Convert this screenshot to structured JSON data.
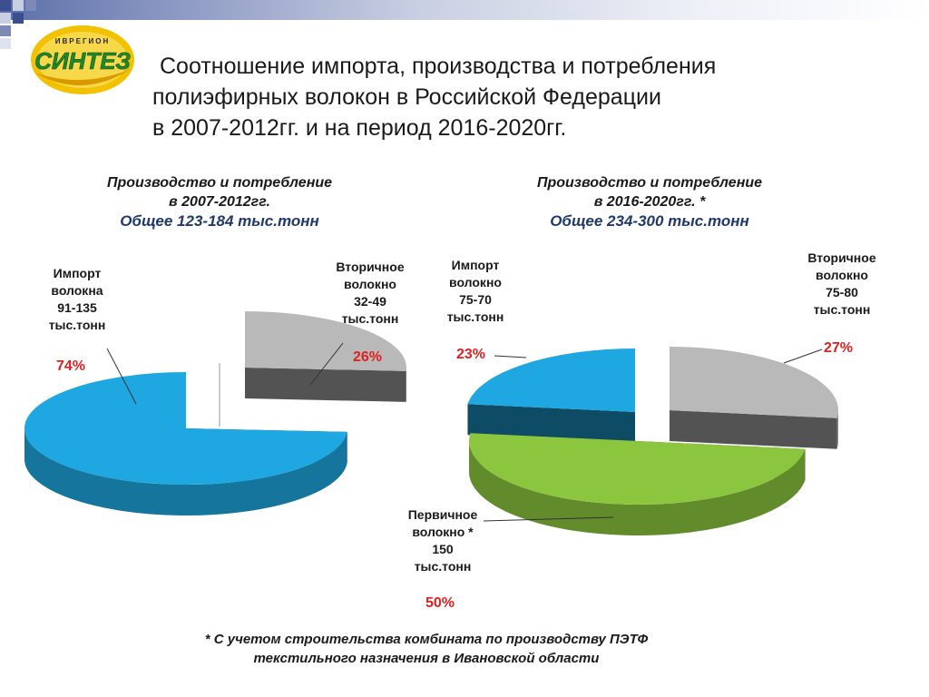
{
  "logo": {
    "top_text": "ИВРЕГИОН",
    "brand": "СИНТЕЗ"
  },
  "title": {
    "line1": "Соотношение импорта, производства и потребления",
    "line2": "полиэфирных волокон в Российской Федерации",
    "line3": "в 2007-2012гг. и на период 2016-2020гг."
  },
  "colors": {
    "import": "#1ea7e0",
    "secondary": "#b9b9b9",
    "primary": "#8cc63f",
    "percent": "#e02020",
    "band": "#5b6fa8"
  },
  "chart_data": [
    {
      "type": "pie",
      "title": "Производство и потребление в 2007-2012гг.",
      "heading_line1": "Производство и потребление",
      "heading_line2": "в 2007-2012гг.",
      "total": "Общее 123-184 тыс.тонн",
      "slices": [
        {
          "key": "import",
          "label": [
            "Импорт",
            "волокна",
            "91-135",
            "тыс.тонн"
          ],
          "percent": 74,
          "percent_text": "74%"
        },
        {
          "key": "secondary",
          "label": [
            "Вторичное",
            "волокно",
            "32-49",
            "тыс.тонн"
          ],
          "percent": 26,
          "percent_text": "26%"
        }
      ]
    },
    {
      "type": "pie",
      "title": "Производство и потребление в 2016-2020гг. *",
      "heading_line1": "Производство и потребление",
      "heading_line2": "в 2016-2020гг.  *",
      "total": "Общее 234-300 тыс.тонн",
      "slices": [
        {
          "key": "import",
          "label": [
            "Импорт",
            "волокно",
            "75-70",
            "тыс.тонн"
          ],
          "percent": 23,
          "percent_text": "23%"
        },
        {
          "key": "secondary",
          "label": [
            "Вторичное",
            "волокно",
            "75-80",
            "тыс.тонн"
          ],
          "percent": 27,
          "percent_text": "27%"
        },
        {
          "key": "primary",
          "label": [
            "Первичное",
            "волокно *",
            "150",
            "тыс.тонн"
          ],
          "percent": 50,
          "percent_text": "50%"
        }
      ]
    }
  ],
  "footnote": {
    "line1": "* С учетом строительства комбината по производству ПЭТФ",
    "line2": "текстильного назначения в Ивановской области"
  }
}
